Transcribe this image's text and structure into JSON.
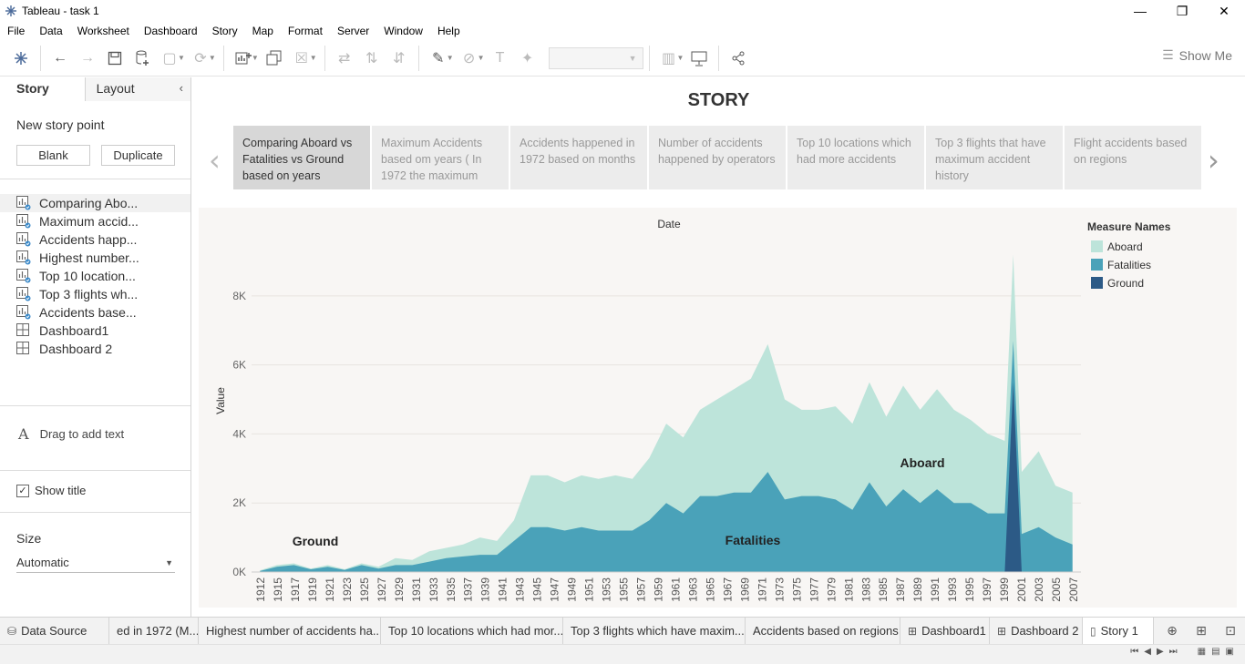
{
  "window": {
    "title": "Tableau - task 1",
    "minimize_label": "—",
    "maximize_label": "❐",
    "close_label": "✕"
  },
  "menu": [
    "File",
    "Data",
    "Worksheet",
    "Dashboard",
    "Story",
    "Map",
    "Format",
    "Server",
    "Window",
    "Help"
  ],
  "toolbar": {
    "show_me_label": "Show Me"
  },
  "left_pane": {
    "tab_story": "Story",
    "tab_layout": "Layout",
    "collapse_label": "‹",
    "new_story_point": "New story point",
    "blank_label": "Blank",
    "duplicate_label": "Duplicate",
    "items": [
      {
        "label": "Comparing Abo...",
        "type": "worksheet"
      },
      {
        "label": "Maximum accid...",
        "type": "worksheet"
      },
      {
        "label": "Accidents happ...",
        "type": "worksheet"
      },
      {
        "label": "Highest number...",
        "type": "worksheet"
      },
      {
        "label": "Top 10 location...",
        "type": "worksheet"
      },
      {
        "label": "Top 3 flights wh...",
        "type": "worksheet"
      },
      {
        "label": "Accidents base...",
        "type": "worksheet"
      },
      {
        "label": "Dashboard1",
        "type": "dashboard"
      },
      {
        "label": "Dashboard 2",
        "type": "dashboard"
      }
    ],
    "drag_text": "Drag to add text",
    "show_title": "Show title",
    "size_label": "Size",
    "size_value": "Automatic"
  },
  "story": {
    "title": "STORY",
    "points": [
      "Comparing Aboard vs Fatalities vs Ground based on years",
      "Maximum Accidents based om years ( In 1972 the maximum",
      "Accidents happened in 1972 based on months",
      "Number of accidents happened by operators",
      "Top 10 locations which had more accidents",
      "Top 3 flights that have maximum accident history",
      "Flight accidents based on regions"
    ]
  },
  "chart_data": {
    "type": "area",
    "title": "Date",
    "xlabel": "Date",
    "ylabel": "Value",
    "ylim": [
      0,
      9500
    ],
    "y_ticks": [
      0,
      2000,
      4000,
      6000,
      8000
    ],
    "y_tick_labels": [
      "0K",
      "2K",
      "4K",
      "6K",
      "8K"
    ],
    "x_tick_labels": [
      "1912",
      "1915",
      "1917",
      "1919",
      "1921",
      "1923",
      "1925",
      "1927",
      "1929",
      "1931",
      "1933",
      "1935",
      "1937",
      "1939",
      "1941",
      "1943",
      "1945",
      "1947",
      "1949",
      "1951",
      "1953",
      "1955",
      "1957",
      "1959",
      "1961",
      "1963",
      "1965",
      "1967",
      "1969",
      "1971",
      "1973",
      "1975",
      "1977",
      "1979",
      "1981",
      "1983",
      "1985",
      "1987",
      "1989",
      "1991",
      "1993",
      "1995",
      "1997",
      "1999",
      "2001",
      "2003",
      "2005",
      "2007"
    ],
    "legend_title": "Measure Names",
    "legend_position": "top-right",
    "colors": {
      "Aboard": "#bde4da",
      "Fatalities": "#4aa2b9",
      "Ground": "#2c5a86"
    },
    "annotations": [
      "Aboard",
      "Fatalities",
      "Ground"
    ],
    "x": [
      1912,
      1914,
      1916,
      1918,
      1920,
      1922,
      1924,
      1926,
      1928,
      1930,
      1932,
      1934,
      1936,
      1938,
      1940,
      1942,
      1944,
      1946,
      1948,
      1950,
      1952,
      1954,
      1956,
      1958,
      1960,
      1962,
      1964,
      1966,
      1968,
      1970,
      1972,
      1974,
      1976,
      1978,
      1980,
      1982,
      1984,
      1986,
      1988,
      1990,
      1992,
      1994,
      1996,
      1998,
      2000,
      2001,
      2002,
      2004,
      2006,
      2008
    ],
    "series": [
      {
        "name": "Aboard",
        "values": [
          50,
          200,
          250,
          100,
          200,
          80,
          250,
          150,
          400,
          350,
          600,
          700,
          800,
          1000,
          900,
          1500,
          2800,
          2800,
          2600,
          2800,
          2700,
          2800,
          2700,
          3300,
          4300,
          3900,
          4700,
          5000,
          5300,
          5600,
          6600,
          5000,
          4700,
          4700,
          4800,
          4300,
          5500,
          4500,
          5400,
          4700,
          5300,
          4700,
          4400,
          4000,
          3800,
          9200,
          2900,
          3500,
          2500,
          2300
        ],
        "fill": "#bde4da"
      },
      {
        "name": "Fatalities",
        "values": [
          30,
          150,
          200,
          80,
          150,
          60,
          200,
          100,
          200,
          200,
          300,
          400,
          450,
          500,
          500,
          900,
          1300,
          1300,
          1200,
          1300,
          1200,
          1200,
          1200,
          1500,
          2000,
          1700,
          2200,
          2200,
          2300,
          2300,
          2900,
          2100,
          2200,
          2200,
          2100,
          1800,
          2600,
          1900,
          2400,
          2000,
          2400,
          2000,
          2000,
          1700,
          1700,
          6700,
          1100,
          1300,
          1000,
          800
        ],
        "fill": "#4aa2b9"
      },
      {
        "name": "Ground",
        "values": [
          0,
          0,
          0,
          0,
          0,
          0,
          0,
          0,
          0,
          0,
          0,
          0,
          0,
          0,
          0,
          0,
          0,
          0,
          0,
          0,
          0,
          0,
          0,
          0,
          0,
          0,
          0,
          0,
          0,
          0,
          0,
          0,
          0,
          0,
          0,
          0,
          0,
          0,
          0,
          0,
          0,
          0,
          0,
          0,
          0,
          5500,
          0,
          0,
          0,
          0
        ],
        "fill": "#2c5a86"
      }
    ]
  },
  "bottom_tabs": [
    {
      "label": "Data Source",
      "icon": "database-icon"
    },
    {
      "label": "ed in 1972 (M...",
      "icon": ""
    },
    {
      "label": "Highest number of accidents ha...",
      "icon": ""
    },
    {
      "label": "Top 10 locations which had mor...",
      "icon": ""
    },
    {
      "label": "Top 3 flights which have maxim...",
      "icon": ""
    },
    {
      "label": "Accidents based on regions",
      "icon": ""
    },
    {
      "label": "Dashboard1",
      "icon": "dashboard-icon"
    },
    {
      "label": "Dashboard 2",
      "icon": "dashboard-icon"
    },
    {
      "label": "Story 1",
      "icon": "story-icon"
    }
  ]
}
